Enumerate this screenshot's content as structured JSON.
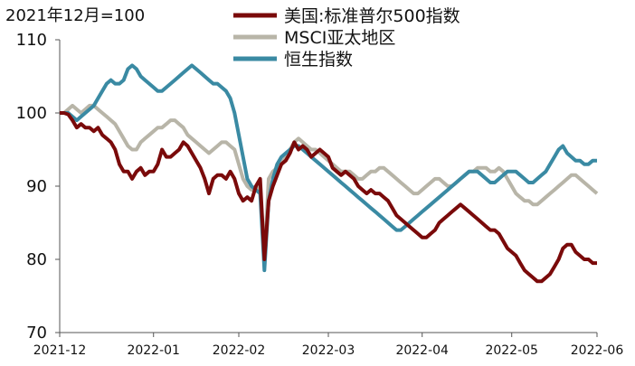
{
  "chart_data": {
    "type": "line",
    "title": "",
    "base_note": "2021年12月=100",
    "xlabel": "",
    "ylabel": "",
    "ylim": [
      70,
      110
    ],
    "yticks": [
      70,
      80,
      90,
      100,
      110
    ],
    "xlim": [
      0,
      126
    ],
    "x_labels": [
      {
        "x": 0,
        "label": "2021-12"
      },
      {
        "x": 22,
        "label": "2022-01"
      },
      {
        "x": 42,
        "label": "2022-02"
      },
      {
        "x": 63,
        "label": "2022-03"
      },
      {
        "x": 85,
        "label": "2022-04"
      },
      {
        "x": 106,
        "label": "2022-05"
      },
      {
        "x": 126,
        "label": "2022-06"
      }
    ],
    "grid": false,
    "legend_position": "top-center",
    "series": [
      {
        "name": "美国:标准普尔500指数",
        "color": "#7a0a0a",
        "x": [
          0,
          1,
          2,
          3,
          4,
          5,
          6,
          7,
          8,
          9,
          10,
          11,
          12,
          13,
          14,
          15,
          16,
          17,
          18,
          19,
          20,
          21,
          22,
          23,
          24,
          25,
          26,
          27,
          28,
          29,
          30,
          31,
          32,
          33,
          34,
          35,
          36,
          37,
          38,
          39,
          40,
          41,
          42,
          43,
          44,
          45,
          46,
          47,
          48,
          49,
          50,
          51,
          52,
          53,
          54,
          55,
          56,
          57,
          58,
          59,
          60,
          61,
          62,
          63,
          64,
          65,
          66,
          67,
          68,
          69,
          70,
          71,
          72,
          73,
          74,
          75,
          76,
          77,
          78,
          79,
          80,
          81,
          82,
          83,
          84,
          85,
          86,
          87,
          88,
          89,
          90,
          91,
          92,
          93,
          94,
          95,
          96,
          97,
          98,
          99,
          100,
          101,
          102,
          103,
          104,
          105,
          106,
          107,
          108,
          109,
          110,
          111,
          112,
          113,
          114,
          115,
          116,
          117,
          118,
          119,
          120,
          121,
          122,
          123,
          124,
          125,
          126
        ],
        "values": [
          100,
          100,
          99.8,
          99,
          98,
          98.5,
          98,
          98,
          97.5,
          98,
          97,
          96.5,
          96,
          95,
          93,
          92,
          92,
          91,
          92,
          92.5,
          91.5,
          92,
          92,
          93,
          95,
          94,
          94,
          94.5,
          95,
          96,
          95.5,
          94.5,
          93.5,
          92.5,
          91,
          89,
          91,
          91.5,
          91.5,
          91,
          92,
          91,
          89,
          88,
          88.5,
          88,
          90,
          91,
          80,
          88,
          90,
          91.5,
          93,
          93.5,
          94.5,
          96,
          95,
          95.5,
          95,
          94,
          94.5,
          95,
          94.5,
          94,
          92.5,
          92,
          91.5,
          92,
          91.5,
          91,
          90,
          89.5,
          89,
          89.5,
          89,
          89,
          88.5,
          88,
          87,
          86,
          85.5,
          85,
          84.5,
          84,
          83.5,
          83,
          83,
          83.5,
          84,
          85,
          85.5,
          86,
          86.5,
          87,
          87.5,
          87,
          86.5,
          86,
          85.5,
          85,
          84.5,
          84,
          84,
          83.5,
          82.5,
          81.5,
          81,
          80.5,
          79.5,
          78.5,
          78,
          77.5,
          77,
          77,
          77.5,
          78,
          79,
          80,
          81.5,
          82,
          82,
          81,
          80.5,
          80,
          80,
          79.5,
          79.5
        ]
      },
      {
        "name": "MSCI亚太地区",
        "color": "#b8b5a8",
        "x": [
          0,
          1,
          2,
          3,
          4,
          5,
          6,
          7,
          8,
          9,
          10,
          11,
          12,
          13,
          14,
          15,
          16,
          17,
          18,
          19,
          20,
          21,
          22,
          23,
          24,
          25,
          26,
          27,
          28,
          29,
          30,
          31,
          32,
          33,
          34,
          35,
          36,
          37,
          38,
          39,
          40,
          41,
          42,
          43,
          44,
          45,
          46,
          47,
          48,
          49,
          50,
          51,
          52,
          53,
          54,
          55,
          56,
          57,
          58,
          59,
          60,
          61,
          62,
          63,
          64,
          65,
          66,
          67,
          68,
          69,
          70,
          71,
          72,
          73,
          74,
          75,
          76,
          77,
          78,
          79,
          80,
          81,
          82,
          83,
          84,
          85,
          86,
          87,
          88,
          89,
          90,
          91,
          92,
          93,
          94,
          95,
          96,
          97,
          98,
          99,
          100,
          101,
          102,
          103,
          104,
          105,
          106,
          107,
          108,
          109,
          110,
          111,
          112,
          113,
          114,
          115,
          116,
          117,
          118,
          119,
          120,
          121,
          122,
          123,
          124,
          125,
          126
        ],
        "values": [
          100,
          100,
          100.5,
          101,
          100.5,
          100,
          100.5,
          101,
          101,
          100.5,
          100,
          99.5,
          99,
          98.5,
          97.5,
          96.5,
          95.5,
          95,
          95,
          96,
          96.5,
          97,
          97.5,
          98,
          98,
          98.5,
          99,
          99,
          98.5,
          98,
          97,
          96.5,
          96,
          95.5,
          95,
          94.5,
          95,
          95.5,
          96,
          96,
          95.5,
          95,
          93,
          91,
          90,
          89.5,
          89.5,
          90,
          80,
          91,
          92,
          92.5,
          93,
          94,
          95,
          96,
          96.5,
          96,
          95.5,
          95,
          95,
          94.5,
          94,
          93.5,
          93,
          92.5,
          92,
          92,
          92,
          91.5,
          91,
          91,
          91.5,
          92,
          92,
          92.5,
          92.5,
          92,
          91.5,
          91,
          90.5,
          90,
          89.5,
          89,
          89,
          89.5,
          90,
          90.5,
          91,
          91,
          90.5,
          90,
          90,
          90.5,
          91,
          91.5,
          92,
          92,
          92.5,
          92.5,
          92.5,
          92,
          92,
          92.5,
          92,
          91,
          90,
          89,
          88.5,
          88,
          88,
          87.5,
          87.5,
          88,
          88.5,
          89,
          89.5,
          90,
          90.5,
          91,
          91.5,
          91.5,
          91,
          90.5,
          90,
          89.5,
          89
        ]
      },
      {
        "name": "恒生指数",
        "color": "#3a8aa3",
        "x": [
          0,
          1,
          2,
          3,
          4,
          5,
          6,
          7,
          8,
          9,
          10,
          11,
          12,
          13,
          14,
          15,
          16,
          17,
          18,
          19,
          20,
          21,
          22,
          23,
          24,
          25,
          26,
          27,
          28,
          29,
          30,
          31,
          32,
          33,
          34,
          35,
          36,
          37,
          38,
          39,
          40,
          41,
          42,
          43,
          44,
          45,
          46,
          47,
          48,
          49,
          50,
          51,
          52,
          53,
          54,
          55,
          56,
          57,
          58,
          59,
          60,
          61,
          62,
          63,
          64,
          65,
          66,
          67,
          68,
          69,
          70,
          71,
          72,
          73,
          74,
          75,
          76,
          77,
          78,
          79,
          80,
          81,
          82,
          83,
          84,
          85,
          86,
          87,
          88,
          89,
          90,
          91,
          92,
          93,
          94,
          95,
          96,
          97,
          98,
          99,
          100,
          101,
          102,
          103,
          104,
          105,
          106,
          107,
          108,
          109,
          110,
          111,
          112,
          113,
          114,
          115,
          116,
          117,
          118,
          119,
          120,
          121,
          122,
          123,
          124,
          125,
          126
        ],
        "values": [
          100,
          100,
          100,
          99.5,
          99,
          99.5,
          100,
          100.5,
          101,
          102,
          103,
          104,
          104.5,
          104,
          104,
          104.5,
          106,
          106.5,
          106,
          105,
          104.5,
          104,
          103.5,
          103,
          103,
          103.5,
          104,
          104.5,
          105,
          105.5,
          106,
          106.5,
          106,
          105.5,
          105,
          104.5,
          104,
          104,
          103.5,
          103,
          102,
          100,
          97,
          94,
          91,
          90,
          89.5,
          89,
          78.5,
          88,
          91,
          93,
          94,
          94.5,
          95,
          95.5,
          95.5,
          95,
          94.5,
          94,
          93.5,
          93,
          92.5,
          92,
          91.5,
          91,
          90.5,
          90,
          89.5,
          89,
          88.5,
          88,
          87.5,
          87,
          86.5,
          86,
          85.5,
          85,
          84.5,
          84,
          84,
          84.5,
          85,
          85.5,
          86,
          86.5,
          87,
          87.5,
          88,
          88.5,
          89,
          89.5,
          90,
          90.5,
          91,
          91.5,
          92,
          92,
          92,
          91.5,
          91,
          90.5,
          90.5,
          91,
          91.5,
          92,
          92,
          92,
          91.5,
          91,
          90.5,
          90.5,
          91,
          91.5,
          92,
          93,
          94,
          95,
          95.5,
          94.5,
          94,
          93.5,
          93.5,
          93,
          93,
          93.5,
          93.5
        ]
      }
    ]
  },
  "watermark": "2022-06"
}
